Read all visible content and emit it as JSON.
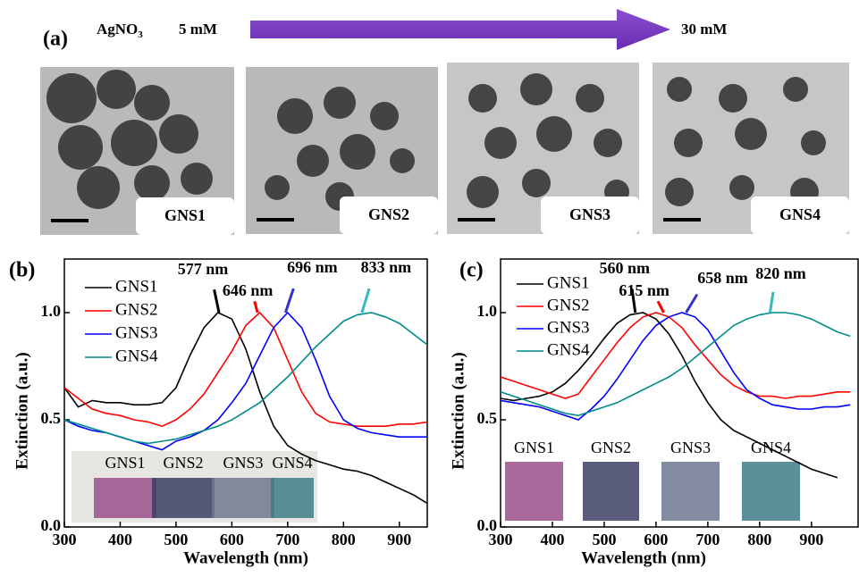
{
  "panel_a": {
    "label": "(a)",
    "reagent": "AgNO",
    "reagent_subscript": "3",
    "start": "5 mM",
    "end": "30 mM",
    "images": [
      "GNS1",
      "GNS2",
      "GNS3",
      "GNS4"
    ]
  },
  "chart_data": [
    {
      "type": "line",
      "panel_label": "(b)",
      "xlabel": "Wavelength (nm)",
      "ylabel": "Extinction (a.u.)",
      "xlim": [
        300,
        950
      ],
      "ylim": [
        0,
        1.25
      ],
      "xticks": [
        300,
        400,
        500,
        600,
        700,
        800,
        900
      ],
      "yticks": [
        {
          "value": 0,
          "label": "0.0"
        },
        {
          "value": 0.5,
          "label": "0.5"
        },
        {
          "value": 1,
          "label": "1.0"
        }
      ],
      "legend": "upper left",
      "x": [
        300,
        325,
        350,
        375,
        400,
        425,
        450,
        475,
        500,
        525,
        550,
        575,
        600,
        625,
        650,
        675,
        700,
        725,
        750,
        775,
        800,
        825,
        850,
        875,
        900,
        925,
        950
      ],
      "series": [
        {
          "name": "GNS1",
          "color": "#000000",
          "values": [
            0.65,
            0.56,
            0.59,
            0.58,
            0.58,
            0.57,
            0.57,
            0.58,
            0.65,
            0.8,
            0.93,
            1.0,
            0.97,
            0.83,
            0.63,
            0.47,
            0.38,
            0.34,
            0.31,
            0.29,
            0.27,
            0.26,
            0.24,
            0.21,
            0.18,
            0.15,
            0.11
          ]
        },
        {
          "name": "GNS2",
          "color": "#ff0000",
          "values": [
            0.65,
            0.6,
            0.55,
            0.53,
            0.52,
            0.5,
            0.49,
            0.47,
            0.5,
            0.55,
            0.62,
            0.72,
            0.82,
            0.94,
            1.0,
            0.93,
            0.78,
            0.63,
            0.53,
            0.49,
            0.48,
            0.47,
            0.47,
            0.47,
            0.48,
            0.48,
            0.49
          ]
        },
        {
          "name": "GNS3",
          "color": "#0000ff",
          "values": [
            0.5,
            0.47,
            0.45,
            0.44,
            0.42,
            0.4,
            0.38,
            0.36,
            0.4,
            0.42,
            0.45,
            0.5,
            0.58,
            0.67,
            0.8,
            0.93,
            1.0,
            0.93,
            0.78,
            0.61,
            0.5,
            0.46,
            0.44,
            0.43,
            0.42,
            0.42,
            0.42
          ]
        },
        {
          "name": "GNS4",
          "color": "#008b8b",
          "values": [
            0.5,
            0.48,
            0.46,
            0.44,
            0.42,
            0.4,
            0.39,
            0.4,
            0.41,
            0.43,
            0.45,
            0.47,
            0.5,
            0.54,
            0.58,
            0.64,
            0.7,
            0.77,
            0.84,
            0.9,
            0.96,
            0.99,
            1.0,
            0.98,
            0.95,
            0.9,
            0.85
          ]
        }
      ],
      "annotations": [
        {
          "text": "577 nm",
          "x": 577,
          "y": 1.0,
          "color": "#000000"
        },
        {
          "text": "646 nm",
          "x": 646,
          "y": 1.0,
          "color": "#ff0000"
        },
        {
          "text": "696 nm",
          "x": 696,
          "y": 1.0,
          "color": "#3333cc"
        },
        {
          "text": "833 nm",
          "x": 833,
          "y": 1.0,
          "color": "#33bbbb"
        }
      ],
      "inset_labels": [
        "GNS1",
        "GNS2",
        "GNS3",
        "GNS4"
      ]
    },
    {
      "type": "line",
      "panel_label": "(c)",
      "xlabel": "Wavelength (nm)",
      "ylabel": "Extinction (a.u.)",
      "xlim": [
        300,
        990
      ],
      "ylim": [
        0,
        1.25
      ],
      "xticks": [
        300,
        400,
        500,
        600,
        700,
        800,
        900
      ],
      "yticks": [
        {
          "value": 0,
          "label": "0.0"
        },
        {
          "value": 0.5,
          "label": "0.5"
        },
        {
          "value": 1,
          "label": "1.0"
        }
      ],
      "legend": "upper left",
      "x": [
        300,
        325,
        350,
        375,
        400,
        425,
        450,
        475,
        500,
        525,
        550,
        575,
        600,
        625,
        650,
        675,
        700,
        725,
        750,
        775,
        800,
        825,
        850,
        875,
        900,
        925,
        950,
        975
      ],
      "series": [
        {
          "name": "GNS1",
          "color": "#000000",
          "values": [
            0.6,
            0.59,
            0.6,
            0.61,
            0.63,
            0.67,
            0.73,
            0.8,
            0.88,
            0.95,
            0.99,
            1.0,
            0.97,
            0.9,
            0.8,
            0.68,
            0.58,
            0.5,
            0.45,
            0.42,
            0.39,
            0.36,
            0.33,
            0.3,
            0.27,
            0.25,
            0.23,
            null
          ]
        },
        {
          "name": "GNS2",
          "color": "#ff0000",
          "values": [
            0.7,
            0.68,
            0.66,
            0.64,
            0.62,
            0.6,
            0.62,
            0.7,
            0.78,
            0.86,
            0.93,
            0.98,
            1.0,
            0.98,
            0.93,
            0.85,
            0.78,
            0.71,
            0.66,
            0.63,
            0.61,
            0.61,
            0.6,
            0.61,
            0.61,
            0.62,
            0.63,
            0.63
          ]
        },
        {
          "name": "GNS3",
          "color": "#0000ff",
          "values": [
            0.59,
            0.58,
            0.57,
            0.56,
            0.54,
            0.52,
            0.5,
            0.55,
            0.61,
            0.69,
            0.78,
            0.87,
            0.94,
            0.98,
            1.0,
            0.98,
            0.92,
            0.82,
            0.72,
            0.64,
            0.6,
            0.57,
            0.56,
            0.55,
            0.55,
            0.56,
            0.56,
            0.57
          ]
        },
        {
          "name": "GNS4",
          "color": "#008b8b",
          "values": [
            0.63,
            0.61,
            0.59,
            0.57,
            0.55,
            0.53,
            0.52,
            0.54,
            0.56,
            0.58,
            0.61,
            0.64,
            0.67,
            0.7,
            0.74,
            0.79,
            0.84,
            0.89,
            0.94,
            0.97,
            0.99,
            1.0,
            1.0,
            0.99,
            0.97,
            0.94,
            0.91,
            0.89
          ]
        }
      ],
      "annotations": [
        {
          "text": "560 nm",
          "x": 560,
          "y": 1.0,
          "color": "#000000"
        },
        {
          "text": "615 nm",
          "x": 615,
          "y": 1.0,
          "color": "#ff0000"
        },
        {
          "text": "658 nm",
          "x": 658,
          "y": 1.0,
          "color": "#3333cc"
        },
        {
          "text": "820 nm",
          "x": 820,
          "y": 1.0,
          "color": "#33bbbb"
        }
      ],
      "inset_labels": [
        "GNS1",
        "GNS2",
        "GNS3",
        "GNS4"
      ]
    }
  ]
}
